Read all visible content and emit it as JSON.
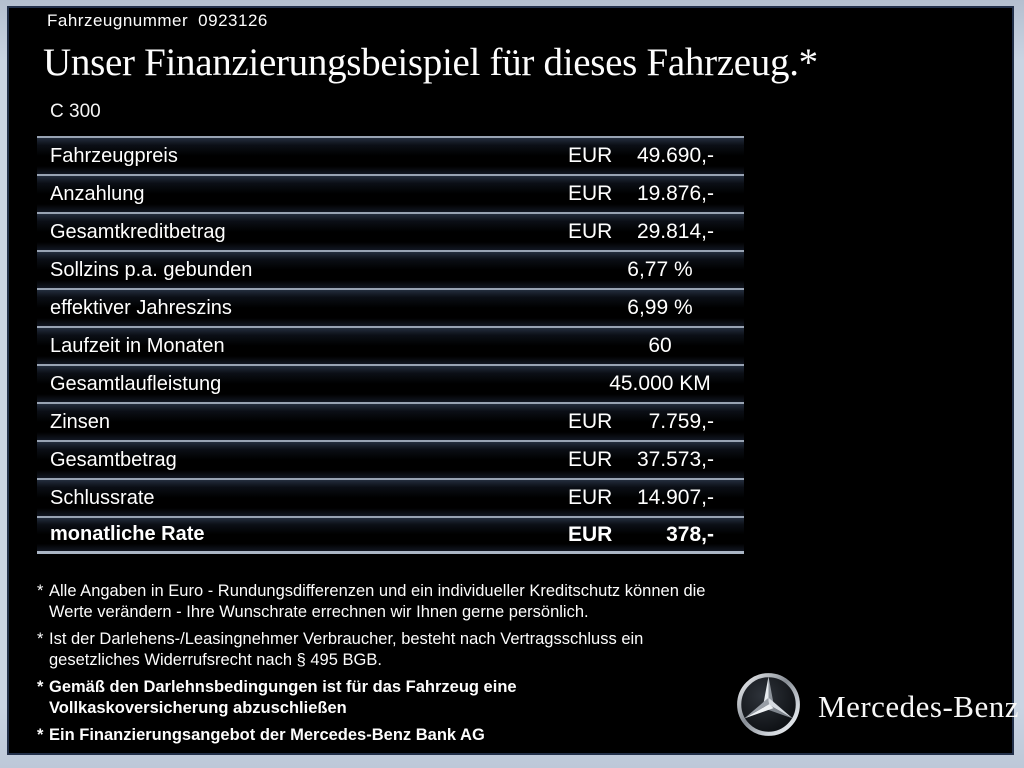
{
  "header": {
    "vehicle_number_label": "Fahrzeugnummer",
    "vehicle_number": "0923126",
    "title": "Unser Finanzierungsbeispiel für dieses Fahrzeug.*",
    "model": "C 300"
  },
  "table": {
    "rows": [
      {
        "label": "Fahrzeugpreis",
        "prefix": "EUR",
        "value": "49.690,-",
        "bold": false
      },
      {
        "label": "Anzahlung",
        "prefix": "EUR",
        "value": "19.876,-",
        "bold": false
      },
      {
        "label": "Gesamtkreditbetrag",
        "prefix": "EUR",
        "value": "29.814,-",
        "bold": false
      },
      {
        "label": "Sollzins p.a. gebunden",
        "prefix": "",
        "value": "6,77 %",
        "bold": false
      },
      {
        "label": "effektiver Jahreszins",
        "prefix": "",
        "value": "6,99 %",
        "bold": false
      },
      {
        "label": "Laufzeit in Monaten",
        "prefix": "",
        "value": "60",
        "bold": false
      },
      {
        "label": "Gesamtlaufleistung",
        "prefix": "",
        "value": "45.000 KM",
        "bold": false
      },
      {
        "label": "Zinsen",
        "prefix": "EUR",
        "value": "7.759,-",
        "bold": false
      },
      {
        "label": "Gesamtbetrag",
        "prefix": "EUR",
        "value": "37.573,-",
        "bold": false
      },
      {
        "label": "Schlussrate",
        "prefix": "EUR",
        "value": "14.907,-",
        "bold": false
      },
      {
        "label": "monatliche Rate",
        "prefix": "EUR",
        "value": "378,-",
        "bold": true
      }
    ]
  },
  "footnotes": [
    {
      "marker": "*",
      "bold": false,
      "lines": [
        "Alle Angaben in Euro - Rundungsdifferenzen und ein individueller Kreditschutz können die",
        "Werte verändern - Ihre Wunschrate errechnen wir Ihnen gerne persönlich."
      ]
    },
    {
      "marker": "*",
      "bold": false,
      "lines": [
        "Ist der Darlehens-/Leasingnehmer Verbraucher, besteht nach Vertragsschluss ein",
        "gesetzliches Widerrufsrecht nach § 495 BGB."
      ]
    },
    {
      "marker": "*",
      "bold": true,
      "lines": [
        "Gemäß den Darlehnsbedingungen ist für das Fahrzeug eine",
        "Vollkaskoversicherung abzuschließen"
      ]
    },
    {
      "marker": "*",
      "bold": true,
      "lines": [
        "Ein Finanzierungsangebot der Mercedes-Benz Bank AG"
      ]
    }
  ],
  "brand": {
    "star_icon": "mercedes-star-icon",
    "wordmark": "Mercedes-Benz"
  },
  "colors": {
    "background": "#000000",
    "frame_border": "#c9d4e3",
    "frame_inner_line": "#22304a",
    "table_line": "#98a3b3",
    "text": "#ffffff"
  }
}
